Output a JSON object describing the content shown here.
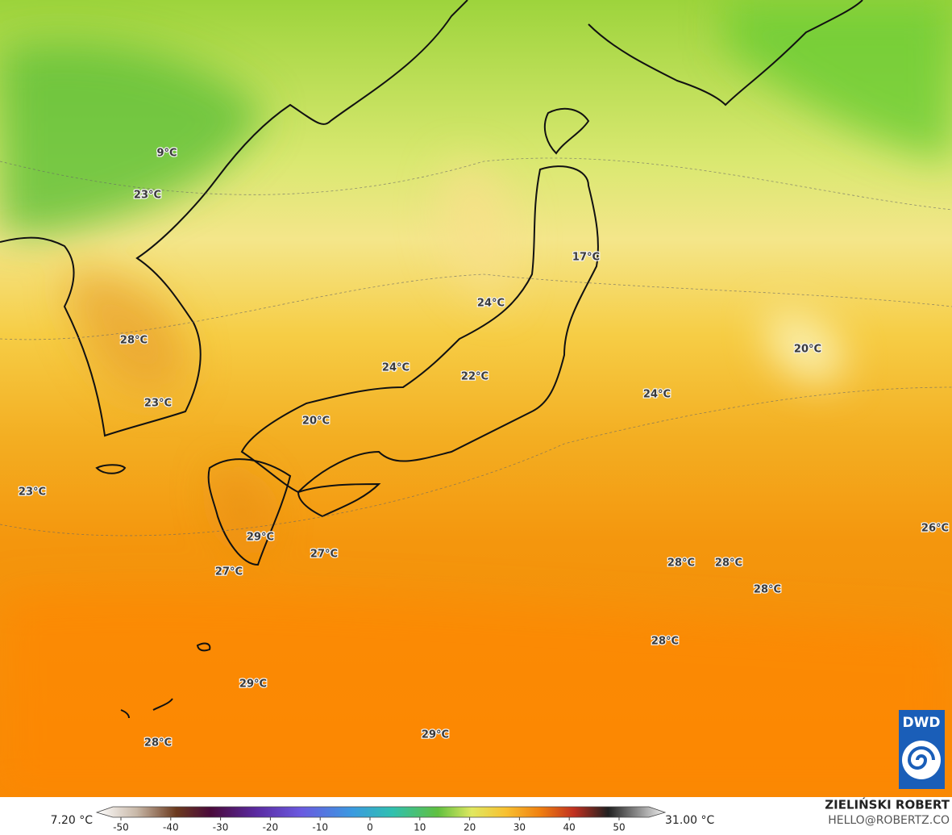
{
  "map": {
    "temperature_labels": [
      "9°C",
      "23°C",
      "17°C",
      "24°C",
      "28°C",
      "20°C",
      "24°C",
      "22°C",
      "24°C",
      "23°C",
      "20°C",
      "23°C",
      "26°C",
      "29°C",
      "27°C",
      "28°C",
      "28°C",
      "27°C",
      "28°C",
      "28°C",
      "29°C",
      "29°C",
      "28°C"
    ],
    "logo": "DWD"
  },
  "colorbar": {
    "min_label": "7.20 °C",
    "max_label": "31.00 °C",
    "ticks": [
      -50,
      -40,
      -30,
      -20,
      -10,
      0,
      10,
      20,
      30,
      40,
      50
    ]
  },
  "credits": {
    "author": "ZIELIŃSKI ROBERT",
    "contact": "HELLO@ROBERTZ.CO"
  }
}
